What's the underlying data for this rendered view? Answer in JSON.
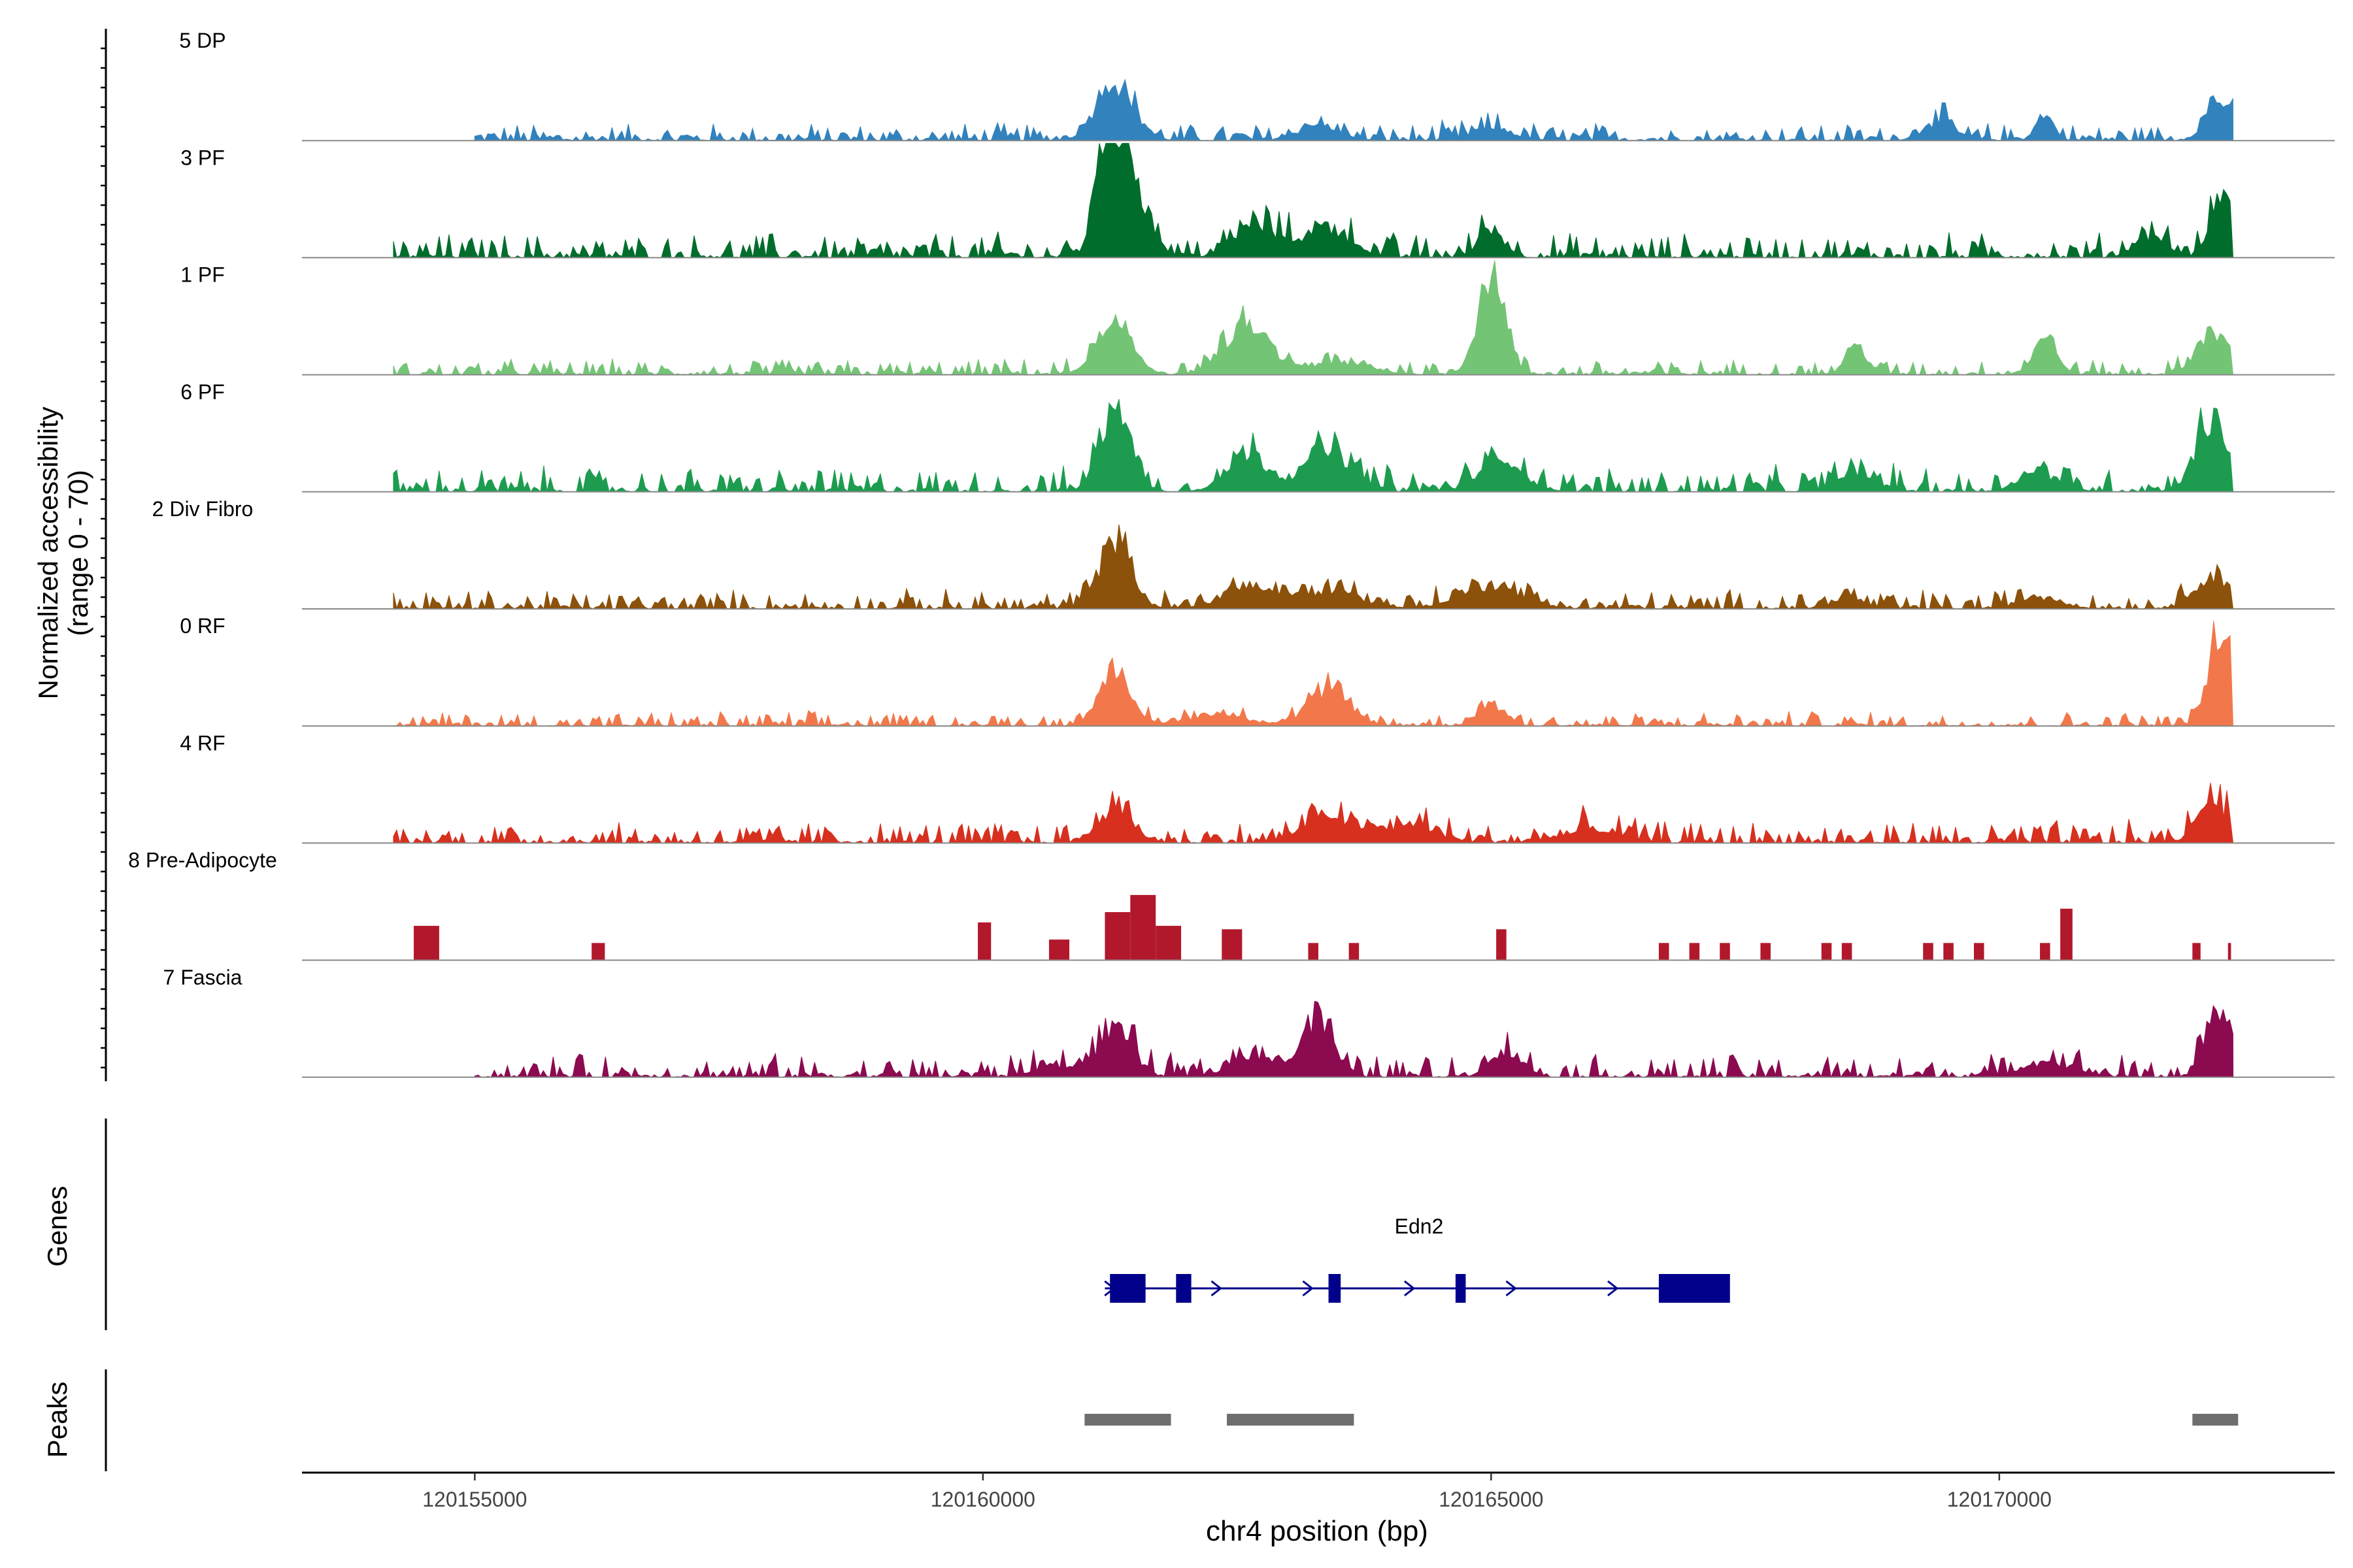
{
  "chart_data": {
    "type": "area",
    "title": "",
    "ylabel_line1": "Normalized accessibility",
    "ylabel_line2": "(range 0 - 70)",
    "xlabel": "chr4 position (bp)",
    "xlim": [
      120153300,
      120173300
    ],
    "ylim": [
      0,
      70
    ],
    "x_ticks": [
      120155000,
      120160000,
      120165000,
      120170000
    ],
    "x_tick_labels": [
      "120155000",
      "120160000",
      "120165000",
      "120170000"
    ],
    "tracks": [
      {
        "name": "5 DP",
        "color": "#3182bd",
        "peaks": [
          [
            120161300,
            16,
            180
          ],
          [
            120169400,
            5,
            150
          ],
          [
            120170450,
            6,
            90
          ],
          [
            120172150,
            12,
            120
          ],
          [
            120165000,
            3,
            200
          ],
          [
            120163300,
            4,
            200
          ]
        ],
        "noise": 1.6,
        "range": [
          120155000,
          120172300
        ]
      },
      {
        "name": "3 PF",
        "color": "#006d2c",
        "peaks": [
          [
            120161250,
            40,
            120
          ],
          [
            120161500,
            18,
            150
          ],
          [
            120162700,
            9,
            220
          ],
          [
            120163400,
            8,
            220
          ],
          [
            120165000,
            8,
            120
          ],
          [
            120172200,
            18,
            110
          ],
          [
            120171500,
            6,
            160
          ]
        ],
        "noise": 2.2,
        "range": [
          120154200,
          120172300
        ]
      },
      {
        "name": "1 PF",
        "color": "#74c476",
        "peaks": [
          [
            120161300,
            14,
            170
          ],
          [
            120162600,
            13,
            220
          ],
          [
            120165000,
            28,
            130
          ],
          [
            120168600,
            7,
            110
          ],
          [
            120170450,
            9,
            120
          ],
          [
            120172100,
            12,
            150
          ],
          [
            120163500,
            3,
            300
          ]
        ],
        "noise": 1.4,
        "range": [
          120154200,
          120172300
        ]
      },
      {
        "name": "6 PF",
        "color": "#1d9c50",
        "peaks": [
          [
            120161300,
            23,
            150
          ],
          [
            120162600,
            10,
            200
          ],
          [
            120163400,
            11,
            240
          ],
          [
            120165100,
            8,
            220
          ],
          [
            120172100,
            20,
            160
          ],
          [
            120168600,
            5,
            200
          ],
          [
            120170400,
            5,
            200
          ]
        ],
        "noise": 2.2,
        "range": [
          120154200,
          120172300
        ]
      },
      {
        "name": "2 Div Fibro",
        "color": "#8c510a",
        "peaks": [
          [
            120161300,
            18,
            160
          ],
          [
            120162600,
            6,
            240
          ],
          [
            120163400,
            5,
            300
          ],
          [
            120165000,
            6,
            300
          ],
          [
            120172100,
            9,
            170
          ],
          [
            120168500,
            3,
            150
          ],
          [
            120170400,
            3,
            200
          ]
        ],
        "noise": 1.7,
        "range": [
          120154200,
          120172300
        ]
      },
      {
        "name": "0 RF",
        "color": "#f2784b",
        "peaks": [
          [
            120161300,
            14,
            160
          ],
          [
            120163400,
            10,
            200
          ],
          [
            120165000,
            6,
            130
          ],
          [
            120172200,
            27,
            130
          ],
          [
            120162300,
            3,
            300
          ]
        ],
        "noise": 1.3,
        "range": [
          120154200,
          120172300
        ]
      },
      {
        "name": "4 RF",
        "color": "#d7301f",
        "peaks": [
          [
            120161300,
            10,
            160
          ],
          [
            120163400,
            7,
            250
          ],
          [
            120164200,
            5,
            250
          ],
          [
            120172100,
            12,
            150
          ],
          [
            120166000,
            3,
            300
          ]
        ],
        "noise": 2.0,
        "range": [
          120154200,
          120172300
        ]
      },
      {
        "name": "8 Pre-Adipocyte",
        "color": "#b2182b",
        "blocks": [
          [
            120154400,
            120154650,
            10
          ],
          [
            120156150,
            120156280,
            5
          ],
          [
            120159950,
            120160080,
            11
          ],
          [
            120160650,
            120160850,
            6
          ],
          [
            120161200,
            120161450,
            14
          ],
          [
            120161450,
            120161700,
            19
          ],
          [
            120161700,
            120161950,
            10
          ],
          [
            120162350,
            120162550,
            9
          ],
          [
            120163200,
            120163300,
            5
          ],
          [
            120163600,
            120163700,
            5
          ],
          [
            120165050,
            120165150,
            9
          ],
          [
            120166650,
            120166750,
            5
          ],
          [
            120166950,
            120167050,
            5
          ],
          [
            120167250,
            120167350,
            5
          ],
          [
            120167650,
            120167750,
            5
          ],
          [
            120168250,
            120168350,
            5
          ],
          [
            120168450,
            120168550,
            5
          ],
          [
            120169250,
            120169350,
            5
          ],
          [
            120169450,
            120169550,
            5
          ],
          [
            120169750,
            120169850,
            5
          ],
          [
            120170400,
            120170500,
            5
          ],
          [
            120170600,
            120170720,
            15
          ],
          [
            120171900,
            120171980,
            5
          ],
          [
            120172250,
            120172280,
            5
          ]
        ],
        "range": [
          120154200,
          120172300
        ]
      },
      {
        "name": "7 Fascia",
        "color": "#8b0a50",
        "peaks": [
          [
            120161300,
            13,
            170
          ],
          [
            120163300,
            17,
            140
          ],
          [
            120162700,
            6,
            250
          ],
          [
            120165150,
            7,
            150
          ],
          [
            120172150,
            19,
            120
          ],
          [
            120170500,
            4,
            250
          ],
          [
            120160700,
            3,
            200
          ]
        ],
        "noise": 2.0,
        "range": [
          120155000,
          120172300
        ]
      }
    ],
    "genes_label": "Genes",
    "gene": {
      "name": "Edn2",
      "start": 120161200,
      "end": 120167300,
      "color": "#00008b",
      "exons": [
        [
          120161250,
          120161600
        ],
        [
          120161900,
          120162050
        ],
        [
          120163400,
          120163520
        ],
        [
          120164650,
          120164750
        ],
        [
          120166650,
          120167350
        ]
      ],
      "arrows": [
        120161250,
        120162300,
        120163200,
        120164200,
        120165200,
        120166200
      ]
    },
    "peaks_label": "Peaks",
    "peak_regions": [
      [
        120161000,
        120161850
      ],
      [
        120162400,
        120163650
      ],
      [
        120171900,
        120172350
      ]
    ],
    "peak_color": "#6e6e6e"
  }
}
